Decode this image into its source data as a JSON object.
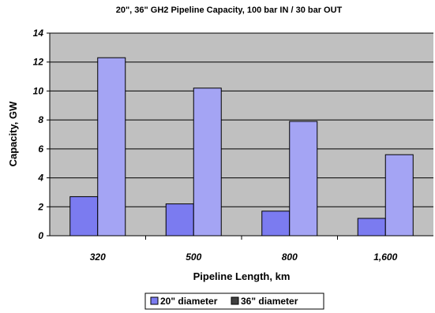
{
  "chart_data": {
    "type": "bar",
    "title": "20\", 36\" GH2 Pipeline Capacity,  100 bar IN / 30 bar OUT",
    "xlabel": "Pipeline Length,  km",
    "ylabel": "Capacity, GW",
    "categories": [
      "320",
      "500",
      "800",
      "1,600"
    ],
    "ylim": [
      0,
      14
    ],
    "yticks": [
      "0",
      "2",
      "4",
      "6",
      "8",
      "10",
      "12",
      "14"
    ],
    "grid": true,
    "legend_position": "bottom",
    "series": [
      {
        "name": "20\" diameter",
        "values": [
          2.7,
          2.2,
          1.7,
          1.2
        ],
        "color": "#7b7bf0"
      },
      {
        "name": "36\" diameter",
        "values": [
          12.3,
          10.2,
          7.9,
          5.6
        ],
        "color": "#a4a4f4"
      }
    ],
    "plot_background": "#c0c0c0"
  }
}
